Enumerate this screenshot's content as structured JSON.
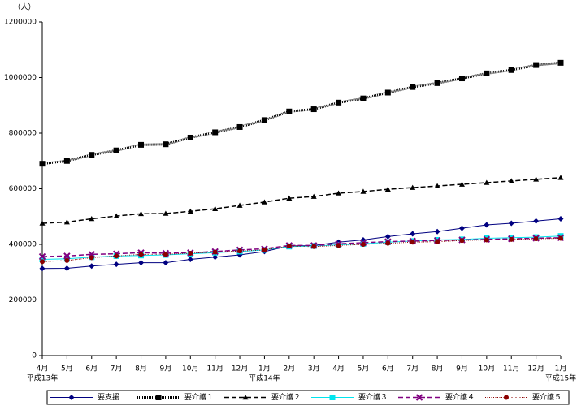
{
  "chart_data": {
    "type": "line",
    "y_unit_label": "（人）",
    "categories": [
      "4月",
      "5月",
      "6月",
      "7月",
      "8月",
      "9月",
      "10月",
      "11月",
      "12月",
      "1月",
      "2月",
      "3月",
      "4月",
      "5月",
      "6月",
      "7月",
      "8月",
      "9月",
      "10月",
      "11月",
      "12月",
      "1月"
    ],
    "x_sublabels": [
      "平成13年",
      null,
      null,
      null,
      null,
      null,
      null,
      null,
      null,
      "平成14年",
      null,
      null,
      null,
      null,
      null,
      null,
      null,
      null,
      null,
      null,
      null,
      "平成15年"
    ],
    "ylim": [
      0,
      1200000
    ],
    "yticks": [
      0,
      200000,
      400000,
      600000,
      800000,
      1000000,
      1200000
    ],
    "grid": false,
    "legend": "bottom",
    "series": [
      {
        "name": "要支援",
        "color": "#000080",
        "marker": "diamond",
        "dash": "none",
        "values": [
          313000,
          314000,
          322000,
          328000,
          334000,
          334000,
          346000,
          354000,
          362000,
          374000,
          394000,
          396000,
          408000,
          416000,
          428000,
          438000,
          446000,
          458000,
          470000,
          476000,
          484000,
          492000
        ]
      },
      {
        "name": "要介護１",
        "color": "#000000",
        "marker": "square",
        "dash": "dotted-thick",
        "values": [
          690000,
          700000,
          722000,
          738000,
          758000,
          760000,
          784000,
          803000,
          822000,
          847000,
          878000,
          886000,
          910000,
          925000,
          946000,
          966000,
          980000,
          997000,
          1015000,
          1027000,
          1045000,
          1053000
        ]
      },
      {
        "name": "要介護２",
        "color": "#000000",
        "marker": "triangle",
        "dash": "dashed",
        "values": [
          476000,
          480000,
          492000,
          502000,
          510000,
          511000,
          519000,
          528000,
          540000,
          552000,
          566000,
          572000,
          584000,
          590000,
          598000,
          604000,
          610000,
          616000,
          622000,
          628000,
          634000,
          640000
        ]
      },
      {
        "name": "要介護３",
        "color": "#00e5ee",
        "marker": "square",
        "dash": "none",
        "values": [
          346000,
          348000,
          354000,
          358000,
          360000,
          362000,
          366000,
          370000,
          374000,
          380000,
          392000,
          394000,
          398000,
          402000,
          408000,
          412000,
          416000,
          418000,
          422000,
          424000,
          426000,
          430000
        ]
      },
      {
        "name": "要介護４",
        "color": "#800080",
        "marker": "x",
        "dash": "dashed",
        "values": [
          356000,
          358000,
          364000,
          366000,
          370000,
          368000,
          370000,
          374000,
          380000,
          384000,
          396000,
          396000,
          402000,
          406000,
          410000,
          412000,
          414000,
          416000,
          418000,
          420000,
          422000,
          424000
        ]
      },
      {
        "name": "要介護５",
        "color": "#8b0000",
        "marker": "circle",
        "dash": "dotted",
        "values": [
          338000,
          342000,
          352000,
          358000,
          364000,
          364000,
          368000,
          372000,
          376000,
          380000,
          394000,
          392000,
          396000,
          400000,
          404000,
          408000,
          410000,
          414000,
          416000,
          418000,
          420000,
          422000
        ]
      }
    ]
  }
}
